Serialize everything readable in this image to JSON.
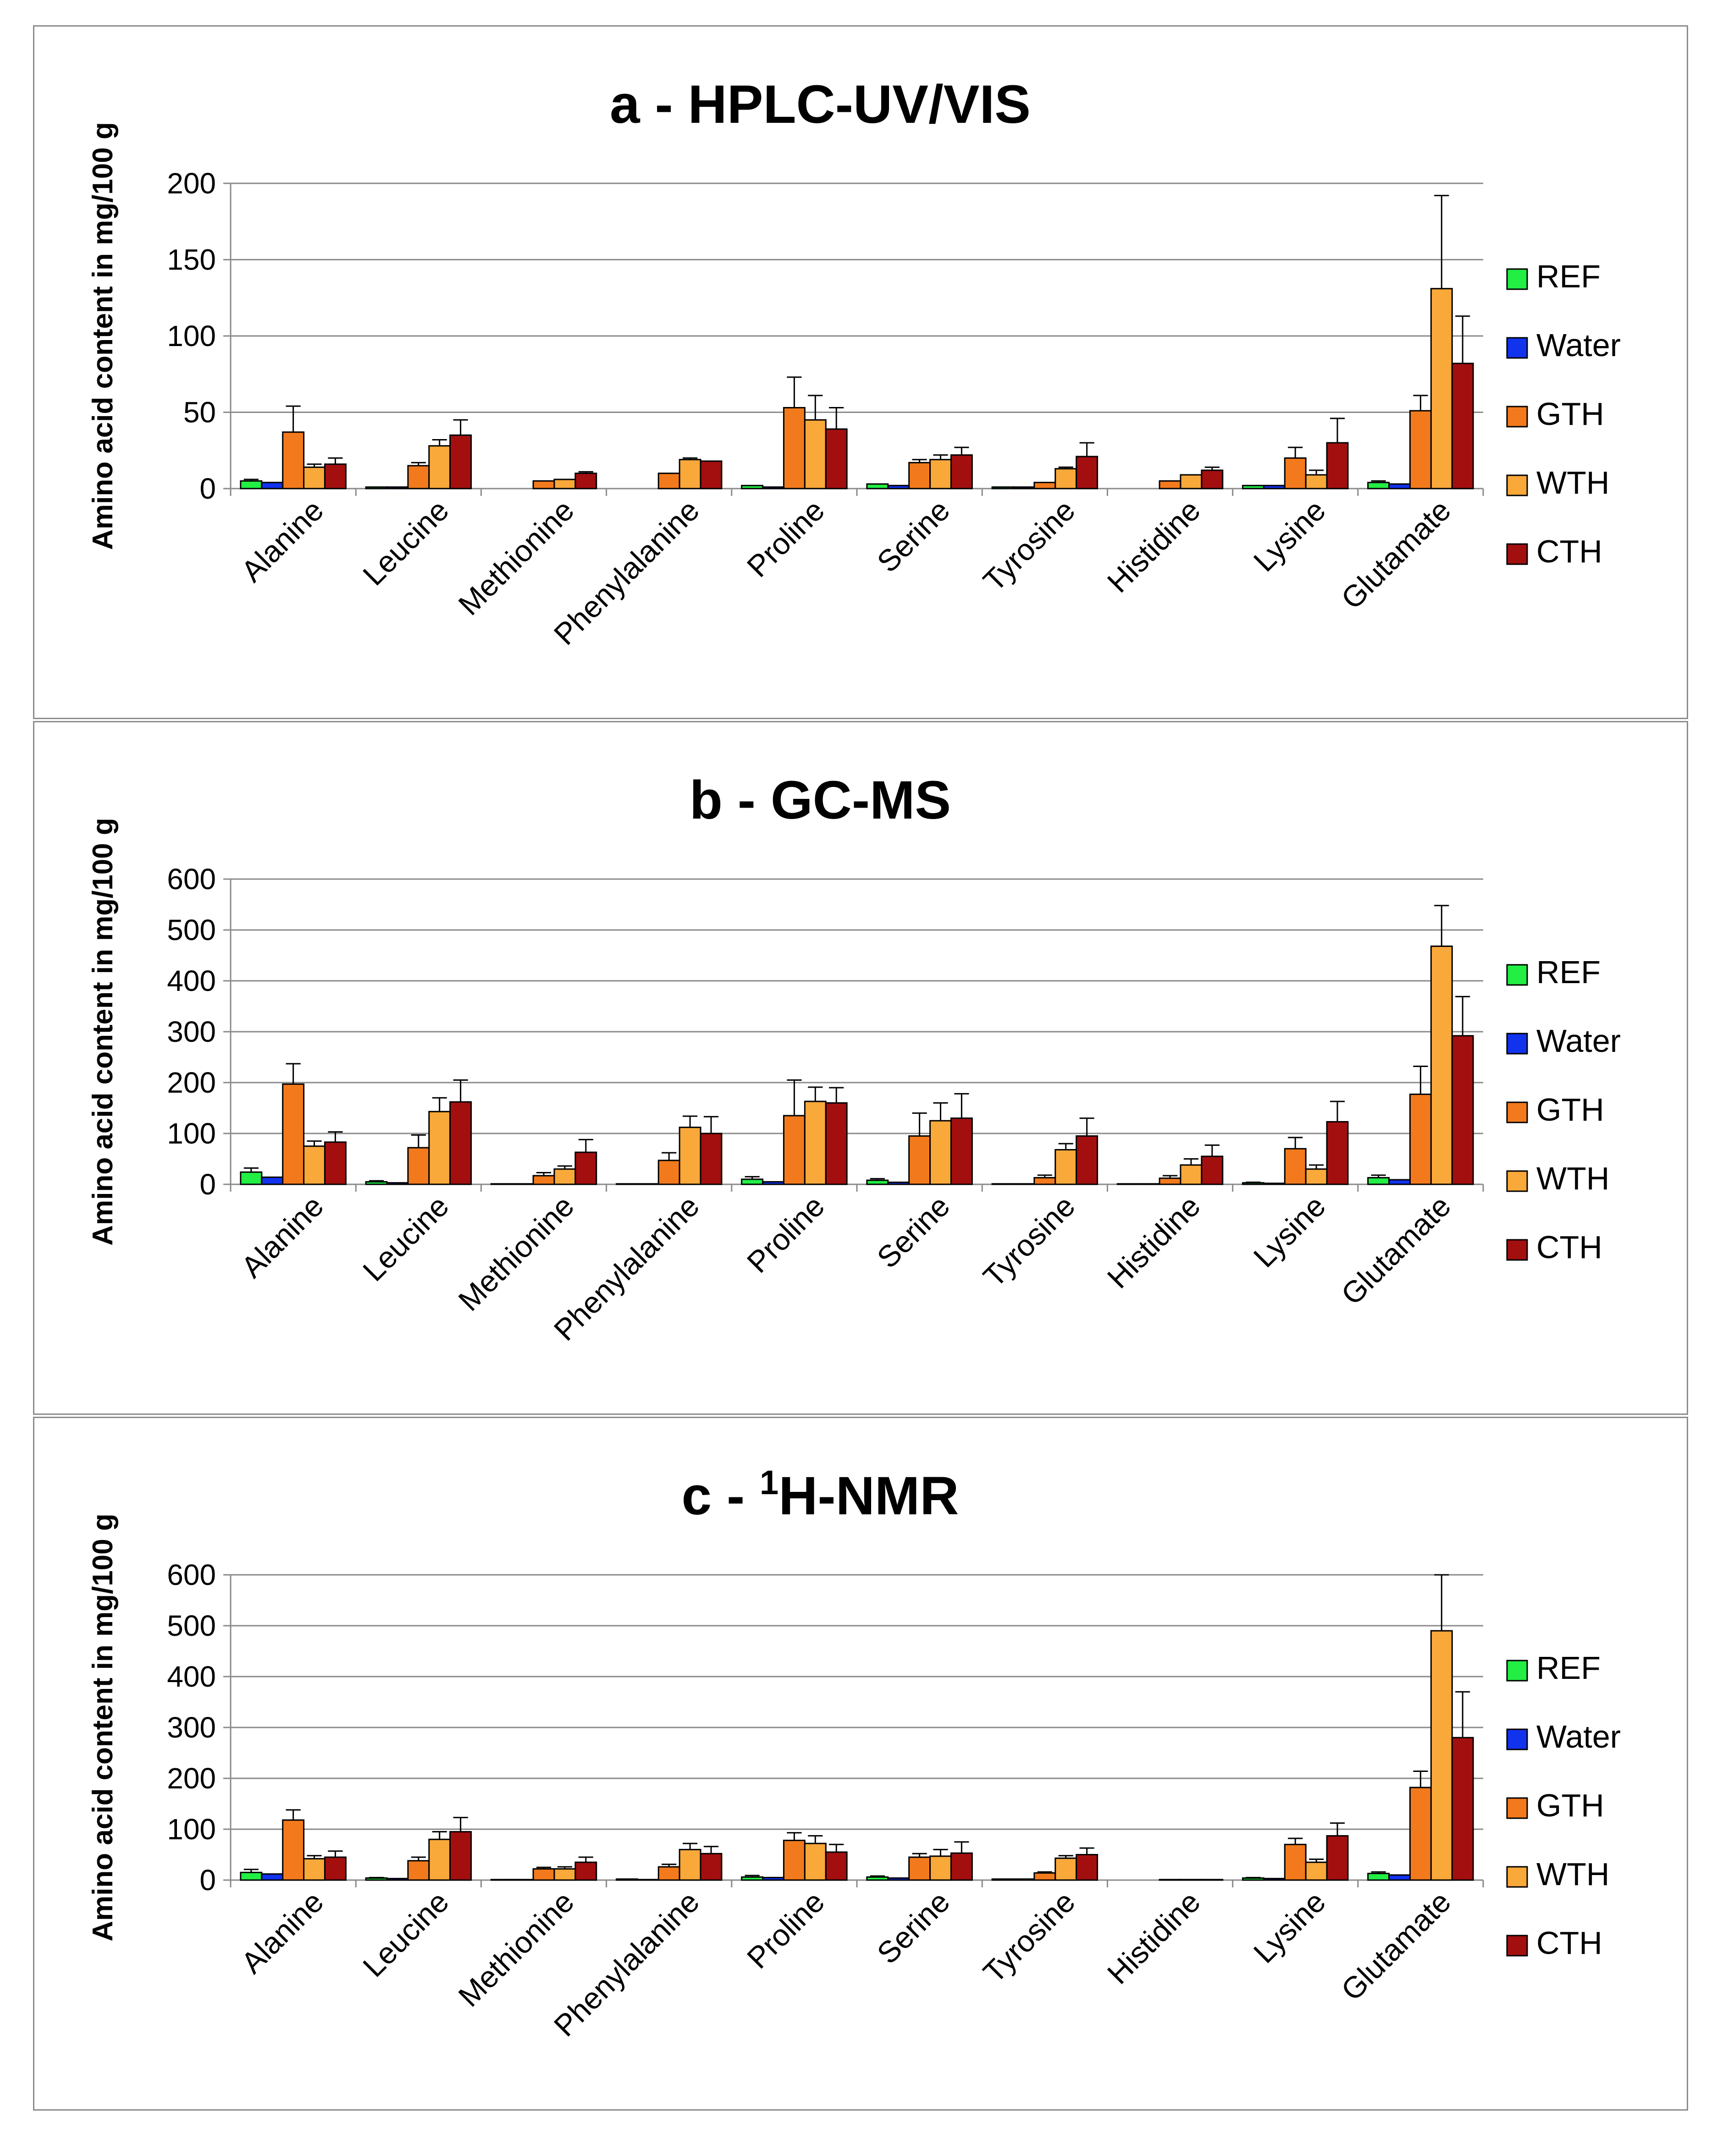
{
  "figure": {
    "panels": [
      "a",
      "b",
      "c"
    ]
  },
  "colors": {
    "REF": "#22ee44",
    "Water": "#1133ee",
    "GTH": "#f27a1c",
    "WTH": "#f9a83a",
    "CTH": "#a30f0f"
  },
  "chart_data": [
    {
      "type": "bar",
      "title_prefix": "a - ",
      "title_sup": "",
      "title_main": "HPLC-UV/VIS",
      "ylabel": "Amino acid content in mg/100 g",
      "xlabel": "",
      "ylim": [
        0,
        200
      ],
      "yticks": [
        "0",
        "50",
        "100",
        "150",
        "200"
      ],
      "ytick_values": [
        0,
        50,
        100,
        150,
        200
      ],
      "categories": [
        "Alanine",
        "Leucine",
        "Methionine",
        "Phenylalanine",
        "Proline",
        "Serine",
        "Tyrosine",
        "Histidine",
        "Lysine",
        "Glutamate"
      ],
      "legend": [
        "REF",
        "Water",
        "GTH",
        "WTH",
        "CTH"
      ],
      "series": [
        {
          "name": "REF",
          "values": [
            5,
            1,
            0,
            0,
            2,
            3,
            1,
            0,
            2,
            4
          ],
          "errors": [
            1,
            0,
            0,
            0,
            0,
            0,
            0,
            0,
            0,
            1
          ]
        },
        {
          "name": "Water",
          "values": [
            4,
            1,
            0,
            0,
            1,
            2,
            1,
            0,
            2,
            3
          ],
          "errors": [
            0,
            0,
            0,
            0,
            0,
            0,
            0,
            0,
            0,
            0
          ]
        },
        {
          "name": "GTH",
          "values": [
            37,
            15,
            5,
            10,
            53,
            17,
            4,
            5,
            20,
            51
          ],
          "errors": [
            17,
            2,
            0,
            0,
            20,
            2,
            0,
            0,
            7,
            10
          ]
        },
        {
          "name": "WTH",
          "values": [
            14,
            28,
            6,
            19,
            45,
            19,
            13,
            9,
            9,
            131
          ],
          "errors": [
            2,
            4,
            0,
            1,
            16,
            3,
            1,
            0,
            3,
            61
          ]
        },
        {
          "name": "CTH",
          "values": [
            16,
            35,
            10,
            18,
            39,
            22,
            21,
            12,
            30,
            82
          ],
          "errors": [
            4,
            10,
            1,
            0,
            14,
            5,
            9,
            2,
            16,
            31
          ]
        }
      ]
    },
    {
      "type": "bar",
      "title_prefix": "b - ",
      "title_sup": "",
      "title_main": "GC-MS",
      "ylabel": "Amino acid content in mg/100 g",
      "xlabel": "",
      "ylim": [
        0,
        600
      ],
      "yticks": [
        "0",
        "100",
        "200",
        "300",
        "400",
        "500",
        "600"
      ],
      "ytick_values": [
        0,
        100,
        200,
        300,
        400,
        500,
        600
      ],
      "categories": [
        "Alanine",
        "Leucine",
        "Methionine",
        "Phenylalanine",
        "Proline",
        "Serine",
        "Tyrosine",
        "Histidine",
        "Lysine",
        "Glutamate"
      ],
      "legend": [
        "REF",
        "Water",
        "GTH",
        "WTH",
        "CTH"
      ],
      "series": [
        {
          "name": "REF",
          "values": [
            24,
            5,
            1,
            1,
            10,
            8,
            1,
            1,
            3,
            13
          ],
          "errors": [
            8,
            2,
            0,
            0,
            5,
            3,
            0,
            0,
            1,
            5
          ]
        },
        {
          "name": "Water",
          "values": [
            14,
            3,
            1,
            1,
            5,
            4,
            1,
            1,
            2,
            9
          ],
          "errors": [
            0,
            0,
            0,
            0,
            0,
            0,
            0,
            0,
            0,
            0
          ]
        },
        {
          "name": "GTH",
          "values": [
            197,
            72,
            17,
            47,
            135,
            95,
            13,
            12,
            70,
            177
          ],
          "errors": [
            40,
            25,
            6,
            15,
            70,
            45,
            5,
            5,
            22,
            55
          ]
        },
        {
          "name": "WTH",
          "values": [
            75,
            143,
            30,
            112,
            163,
            125,
            68,
            38,
            30,
            468
          ],
          "errors": [
            10,
            27,
            6,
            22,
            28,
            35,
            12,
            12,
            8,
            80
          ]
        },
        {
          "name": "CTH",
          "values": [
            83,
            162,
            63,
            100,
            160,
            130,
            95,
            55,
            123,
            292
          ],
          "errors": [
            20,
            43,
            25,
            33,
            30,
            48,
            35,
            22,
            40,
            77
          ]
        }
      ]
    },
    {
      "type": "bar",
      "title_prefix": "c - ",
      "title_sup": "1",
      "title_main": "H-NMR",
      "ylabel": "Amino acid content in mg/100 g",
      "xlabel": "",
      "ylim": [
        0,
        600
      ],
      "yticks": [
        "0",
        "100",
        "200",
        "300",
        "400",
        "500",
        "600"
      ],
      "ytick_values": [
        0,
        100,
        200,
        300,
        400,
        500,
        600
      ],
      "categories": [
        "Alanine",
        "Leucine",
        "Methionine",
        "Phenylalanine",
        "Proline",
        "Serine",
        "Tyrosine",
        "Histidine",
        "Lysine",
        "Glutamate"
      ],
      "legend": [
        "REF",
        "Water",
        "GTH",
        "WTH",
        "CTH"
      ],
      "series": [
        {
          "name": "REF",
          "values": [
            15,
            4,
            1,
            2,
            6,
            6,
            2,
            0,
            4,
            13
          ],
          "errors": [
            6,
            1,
            0,
            0,
            3,
            2,
            0,
            0,
            1,
            3
          ]
        },
        {
          "name": "Water",
          "values": [
            12,
            3,
            1,
            1,
            5,
            4,
            2,
            0,
            3,
            10
          ],
          "errors": [
            0,
            0,
            0,
            0,
            0,
            0,
            0,
            0,
            0,
            0
          ]
        },
        {
          "name": "GTH",
          "values": [
            118,
            38,
            22,
            26,
            78,
            45,
            14,
            1,
            70,
            182
          ],
          "errors": [
            20,
            7,
            3,
            5,
            15,
            7,
            2,
            0,
            12,
            32
          ]
        },
        {
          "name": "WTH",
          "values": [
            42,
            80,
            22,
            60,
            72,
            47,
            43,
            1,
            35,
            490
          ],
          "errors": [
            6,
            15,
            4,
            12,
            15,
            13,
            5,
            0,
            6,
            110
          ]
        },
        {
          "name": "CTH",
          "values": [
            45,
            95,
            35,
            52,
            55,
            53,
            50,
            1,
            87,
            280
          ],
          "errors": [
            12,
            28,
            10,
            14,
            15,
            22,
            13,
            0,
            25,
            90
          ]
        }
      ]
    }
  ]
}
